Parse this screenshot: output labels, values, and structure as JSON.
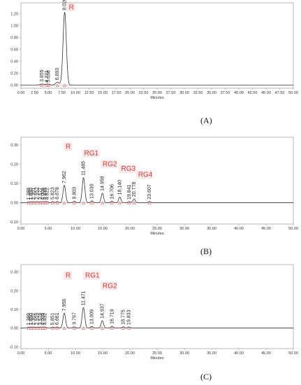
{
  "panel_labels": [
    "(A)",
    "(B)",
    "(C)"
  ],
  "chart_data": [
    {
      "type": "line",
      "panel": "(A)",
      "xlabel": "Minutes",
      "xlim": [
        0,
        50
      ],
      "ylim": [
        -0.05,
        1.38
      ],
      "xticks": [
        "0.00",
        "2.50",
        "5.00",
        "7.50",
        "10.00",
        "12.50",
        "15.00",
        "17.50",
        "20.00",
        "22.50",
        "25.00",
        "27.50",
        "30.00",
        "32.50",
        "35.00",
        "37.50",
        "40.00",
        "42.50",
        "45.00",
        "47.50",
        "50.00"
      ],
      "yticks": [
        "0.00",
        "0.20",
        "0.40",
        "0.60",
        "0.80",
        "1.00",
        "1.20"
      ],
      "peaks": [
        {
          "rt": 3.855,
          "label": "3.855",
          "height": 0.02
        },
        {
          "rt": 4.771,
          "label": "4.771",
          "height": 0.012
        },
        {
          "rt": 5.038,
          "label": "5.038",
          "height": 0.01
        },
        {
          "rt": 6.693,
          "label": "6.693",
          "height": 0.05
        },
        {
          "rt": 8.026,
          "label": "8.026",
          "height": 1.22
        }
      ],
      "compound_labels": [
        {
          "text": "R",
          "rt": 8.8,
          "y": 1.27
        }
      ]
    },
    {
      "type": "line",
      "panel": "(B)",
      "xlabel": "Minutes",
      "xlim": [
        0,
        50
      ],
      "ylim": [
        -0.11,
        0.34
      ],
      "xticks": [
        "0.00",
        "5.00",
        "10.00",
        "15.00",
        "20.00",
        "25.00",
        "30.00",
        "35.00",
        "40.00",
        "45.00",
        "50.00"
      ],
      "yticks": [
        "0.30",
        "0.20",
        "0.10",
        "0.00",
        "-0.10"
      ],
      "peaks": [
        {
          "rt": 1.388,
          "label": "1.388",
          "height": 0.004
        },
        {
          "rt": 1.85,
          "label": "1.850",
          "height": 0.004
        },
        {
          "rt": 2.301,
          "label": "2.301",
          "height": 0.005
        },
        {
          "rt": 2.952,
          "label": "2.952",
          "height": 0.006
        },
        {
          "rt": 3.577,
          "label": "3.577",
          "height": 0.005
        },
        {
          "rt": 4.009,
          "label": "4.009",
          "height": 0.004
        },
        {
          "rt": 4.435,
          "label": "4.435",
          "height": 0.005
        },
        {
          "rt": 4.822,
          "label": "4.822",
          "height": 0.005
        },
        {
          "rt": 5.823,
          "label": "5.823",
          "height": 0.006
        },
        {
          "rt": 6.678,
          "label": "6.678",
          "height": 0.007
        },
        {
          "rt": 7.962,
          "label": "7.962",
          "height": 0.09
        },
        {
          "rt": 9.803,
          "label": "9.803",
          "height": 0.008
        },
        {
          "rt": 11.485,
          "label": "11.485",
          "height": 0.13
        },
        {
          "rt": 13.03,
          "label": "13.030",
          "height": 0.01
        },
        {
          "rt": 14.958,
          "label": "14.958",
          "height": 0.05
        },
        {
          "rt": 16.706,
          "label": "16.706",
          "height": 0.008
        },
        {
          "rt": 18.14,
          "label": "18.140",
          "height": 0.03
        },
        {
          "rt": 19.841,
          "label": "19.841",
          "height": 0.006
        },
        {
          "rt": 20.778,
          "label": "20.778",
          "height": 0.02
        },
        {
          "rt": 23.607,
          "label": "23.607",
          "height": 0.007
        }
      ],
      "compound_labels": [
        {
          "text": "R",
          "rt": 8.2,
          "y": 0.28
        },
        {
          "text": "RG1",
          "rt": 11.6,
          "y": 0.245
        },
        {
          "text": "RG2",
          "rt": 15.0,
          "y": 0.19
        },
        {
          "text": "RG3",
          "rt": 18.4,
          "y": 0.165
        },
        {
          "text": "RG4",
          "rt": 21.5,
          "y": 0.135
        }
      ]
    },
    {
      "type": "line",
      "panel": "(C)",
      "xlabel": "Minutes",
      "xlim": [
        0,
        50
      ],
      "ylim": [
        -0.11,
        0.34
      ],
      "xticks": [
        "0.00",
        "5.00",
        "10.00",
        "15.00",
        "20.00",
        "25.00",
        "30.00",
        "35.00",
        "40.00",
        "45.00",
        "50.00"
      ],
      "yticks": [
        "0.30",
        "0.20",
        "0.10",
        "0.00",
        "-0.10"
      ],
      "peaks": [
        {
          "rt": 1.389,
          "label": "1.389",
          "height": 0.004
        },
        {
          "rt": 1.85,
          "label": "1.850",
          "height": 0.004
        },
        {
          "rt": 2.302,
          "label": "2.302",
          "height": 0.005
        },
        {
          "rt": 2.959,
          "label": "2.959",
          "height": 0.005
        },
        {
          "rt": 3.578,
          "label": "3.578",
          "height": 0.005
        },
        {
          "rt": 4.009,
          "label": "4.009",
          "height": 0.004
        },
        {
          "rt": 4.432,
          "label": "4.432",
          "height": 0.005
        },
        {
          "rt": 5.851,
          "label": "5.851",
          "height": 0.005
        },
        {
          "rt": 6.661,
          "label": "6.661",
          "height": 0.006
        },
        {
          "rt": 7.956,
          "label": "7.956",
          "height": 0.08
        },
        {
          "rt": 9.797,
          "label": "9.797",
          "height": 0.007
        },
        {
          "rt": 11.471,
          "label": "11.471",
          "height": 0.11
        },
        {
          "rt": 13.009,
          "label": "13.009",
          "height": 0.009
        },
        {
          "rt": 14.937,
          "label": "14.937",
          "height": 0.04
        },
        {
          "rt": 16.719,
          "label": "16.719",
          "height": 0.01
        },
        {
          "rt": 18.775,
          "label": "18.775",
          "height": 0.007
        },
        {
          "rt": 19.833,
          "label": "19.833",
          "height": 0.006
        }
      ],
      "compound_labels": [
        {
          "text": "R",
          "rt": 8.2,
          "y": 0.27
        },
        {
          "text": "RG1",
          "rt": 11.8,
          "y": 0.27
        },
        {
          "text": "RG2",
          "rt": 15.0,
          "y": 0.215
        }
      ]
    }
  ],
  "colors": {
    "trace": "#333333",
    "baseline": "#d9a0a0",
    "marker": "#d24b4b",
    "compound_label": "#d23c3c",
    "label_box": "#fbe4e4",
    "frame": "#9a9a9a"
  }
}
